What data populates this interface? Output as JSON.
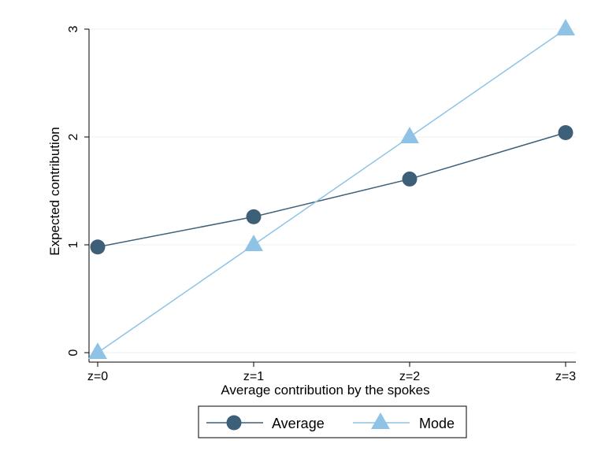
{
  "chart_data": {
    "type": "line",
    "categories": [
      "z=0",
      "z=1",
      "z=2",
      "z=3"
    ],
    "xlabel": "Average contribution by the spokes",
    "ylabel": "Expected contribution",
    "ylim": [
      0,
      3
    ],
    "yticks": [
      "0",
      "1",
      "2",
      "3"
    ],
    "grid": true,
    "legend_position": "bottom",
    "series": [
      {
        "name": "Average",
        "values": [
          0.98,
          1.26,
          1.61,
          2.04
        ],
        "color": "#3e5f78",
        "marker": "circle"
      },
      {
        "name": "Mode",
        "values": [
          0,
          1,
          2,
          3
        ],
        "color": "#8fc3e6",
        "marker": "triangle"
      }
    ]
  }
}
